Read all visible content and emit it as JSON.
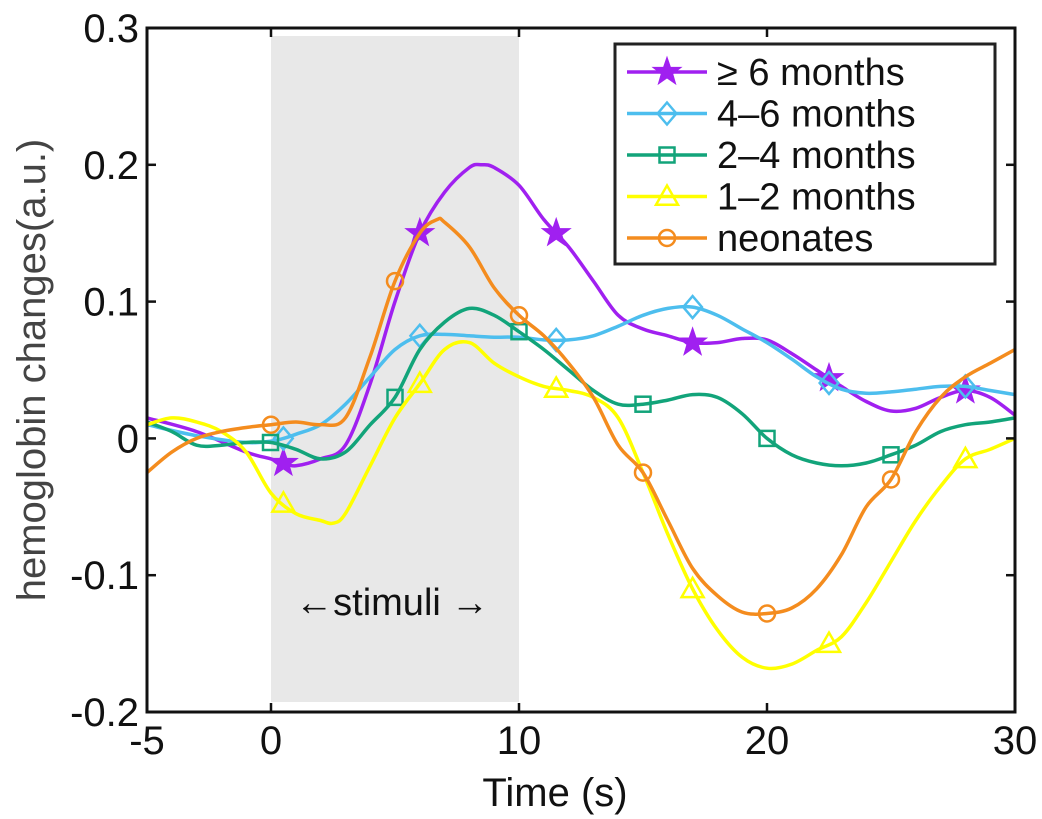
{
  "chart_data": {
    "type": "line",
    "xlabel": "Time (s)",
    "ylabel": "hemoglobin changes(a.u.)",
    "xlim": [
      -5,
      30
    ],
    "ylim": [
      -0.2,
      0.3
    ],
    "xticks": [
      -5,
      0,
      10,
      20,
      30
    ],
    "xtick_labels": [
      "-5",
      "0",
      "10",
      "20",
      "30"
    ],
    "yticks": [
      -0.2,
      -0.1,
      0,
      0.1,
      0.2,
      0.3
    ],
    "ytick_labels": [
      "-0.2",
      "-0.1",
      "0",
      "0.1",
      "0.2",
      "0.3"
    ],
    "legend_position": "top-right",
    "stimulus": {
      "label": "stimuli",
      "left_arrow": "←",
      "right_arrow": "→",
      "start": 0,
      "end": 10,
      "color": "#e8e8e8"
    },
    "series": [
      {
        "name": "≥ 6 months",
        "color": "#a020f0",
        "marker": "star",
        "x": [
          -5,
          -3,
          -1,
          0,
          0.5,
          1,
          2,
          3,
          4,
          5,
          6,
          7,
          8,
          8.5,
          9,
          10,
          11,
          12,
          13,
          14,
          15,
          16,
          17,
          18,
          19,
          20,
          21,
          22,
          23,
          24,
          25,
          26,
          27,
          28,
          29,
          30
        ],
        "values": [
          0.015,
          0.005,
          -0.01,
          -0.015,
          -0.018,
          -0.02,
          -0.015,
          -0.005,
          0.04,
          0.1,
          0.15,
          0.18,
          0.198,
          0.2,
          0.198,
          0.185,
          0.16,
          0.14,
          0.115,
          0.09,
          0.08,
          0.075,
          0.07,
          0.07,
          0.073,
          0.072,
          0.062,
          0.05,
          0.038,
          0.027,
          0.02,
          0.022,
          0.03,
          0.035,
          0.03,
          0.017
        ],
        "marker_x": [
          0.5,
          6,
          11.5,
          17,
          22.5,
          28
        ]
      },
      {
        "name": "4–6 months",
        "color": "#4dbeee",
        "marker": "diamond",
        "x": [
          -5,
          -3,
          -1,
          0,
          0.5,
          1,
          2,
          3,
          4,
          5,
          6,
          7,
          8,
          9,
          10,
          11,
          12,
          13,
          14,
          15,
          16,
          17,
          18,
          19,
          20,
          21,
          22,
          23,
          24,
          25,
          26,
          27,
          28,
          29,
          30
        ],
        "values": [
          0.01,
          0.002,
          -0.003,
          -0.002,
          0.0,
          0.003,
          0.01,
          0.025,
          0.045,
          0.065,
          0.075,
          0.076,
          0.075,
          0.074,
          0.074,
          0.072,
          0.072,
          0.075,
          0.082,
          0.09,
          0.095,
          0.096,
          0.09,
          0.08,
          0.07,
          0.058,
          0.045,
          0.036,
          0.033,
          0.034,
          0.036,
          0.038,
          0.038,
          0.035,
          0.032
        ],
        "marker_x": [
          0.5,
          6,
          11.5,
          17,
          22.5,
          28
        ]
      },
      {
        "name": "2–4 months",
        "color": "#12a47a",
        "marker": "square",
        "x": [
          -5,
          -4,
          -3,
          -2,
          -1,
          0,
          1,
          2,
          3,
          4,
          5,
          6,
          7,
          8,
          9,
          10,
          11,
          12,
          13,
          14,
          15,
          16,
          17,
          18,
          19,
          20,
          21,
          22,
          23,
          24,
          25,
          26,
          27,
          28,
          29,
          30
        ],
        "values": [
          0.012,
          0.005,
          -0.005,
          -0.005,
          -0.003,
          -0.003,
          -0.008,
          -0.015,
          -0.01,
          0.01,
          0.03,
          0.065,
          0.085,
          0.095,
          0.09,
          0.078,
          0.065,
          0.05,
          0.035,
          0.025,
          0.025,
          0.028,
          0.032,
          0.03,
          0.018,
          0.0,
          -0.012,
          -0.018,
          -0.02,
          -0.018,
          -0.012,
          -0.005,
          0.005,
          0.01,
          0.012,
          0.015
        ],
        "marker_x": [
          -0.02,
          5,
          10,
          15,
          20,
          25
        ]
      },
      {
        "name": "1–2 months",
        "color": "#ffff00",
        "marker": "triangle",
        "x": [
          -5,
          -4,
          -3,
          -2,
          -1,
          0,
          1,
          2,
          2.5,
          3,
          4,
          5,
          6,
          7,
          8,
          9,
          10,
          11,
          12,
          13,
          14,
          15,
          16,
          17,
          18,
          19,
          20,
          21,
          22,
          23,
          24,
          25,
          26,
          27,
          28,
          29,
          30
        ],
        "values": [
          0.01,
          0.015,
          0.012,
          0.005,
          -0.01,
          -0.04,
          -0.055,
          -0.06,
          -0.062,
          -0.055,
          -0.02,
          0.015,
          0.04,
          0.065,
          0.07,
          0.055,
          0.045,
          0.038,
          0.035,
          0.03,
          0.015,
          -0.025,
          -0.07,
          -0.11,
          -0.14,
          -0.16,
          -0.168,
          -0.165,
          -0.155,
          -0.145,
          -0.12,
          -0.09,
          -0.06,
          -0.035,
          -0.015,
          -0.008,
          0.0
        ],
        "marker_x": [
          0.5,
          6,
          11.5,
          17,
          22.5,
          28
        ]
      },
      {
        "name": "neonates",
        "color": "#f48c1e",
        "marker": "circle",
        "x": [
          -5,
          -4,
          -3,
          -2,
          -1,
          0,
          1,
          2,
          3,
          4,
          5,
          6,
          6.7,
          7,
          8,
          9,
          10,
          11,
          12,
          13,
          14,
          15,
          16,
          17,
          18,
          19,
          20,
          21,
          22,
          23,
          24,
          25,
          26,
          27,
          28,
          29,
          30
        ],
        "values": [
          -0.025,
          -0.01,
          0.0,
          0.005,
          0.008,
          0.01,
          0.012,
          0.01,
          0.015,
          0.06,
          0.115,
          0.15,
          0.16,
          0.158,
          0.14,
          0.11,
          0.09,
          0.075,
          0.055,
          0.03,
          -0.005,
          -0.025,
          -0.06,
          -0.095,
          -0.115,
          -0.127,
          -0.128,
          -0.124,
          -0.11,
          -0.085,
          -0.05,
          -0.03,
          0.005,
          0.03,
          0.045,
          0.055,
          0.065
        ],
        "marker_x": [
          0,
          5,
          10,
          15,
          20,
          25
        ]
      }
    ]
  }
}
